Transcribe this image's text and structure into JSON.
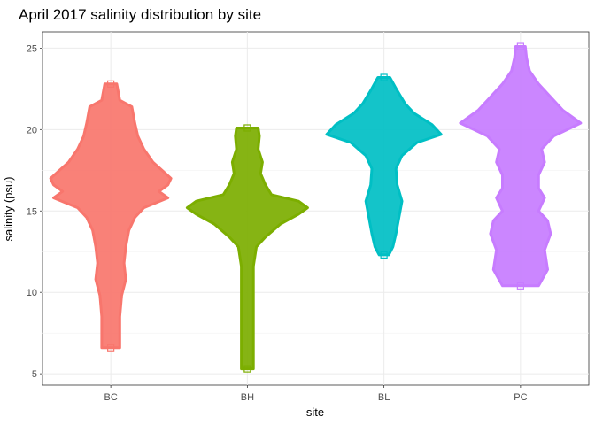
{
  "chart_data": {
    "type": "violin",
    "title": "April 2017 salinity distribution by site",
    "xlabel": "site",
    "ylabel": "salinity (psu)",
    "ylim": [
      4.3,
      26.0
    ],
    "yticks": [
      5,
      10,
      15,
      20,
      25
    ],
    "grid": true,
    "legend": "none",
    "categories": [
      "BC",
      "BH",
      "BL",
      "PC"
    ],
    "series": [
      {
        "category": "BC",
        "color": "#F8766D",
        "min": 6.6,
        "max": 22.8,
        "profile": [
          [
            6.6,
            0.15
          ],
          [
            8.5,
            0.15
          ],
          [
            9.8,
            0.18
          ],
          [
            10.8,
            0.25
          ],
          [
            11.8,
            0.22
          ],
          [
            12.8,
            0.25
          ],
          [
            13.8,
            0.3
          ],
          [
            14.6,
            0.4
          ],
          [
            15.2,
            0.55
          ],
          [
            15.8,
            0.95
          ],
          [
            16.2,
            0.8
          ],
          [
            16.6,
            0.95
          ],
          [
            17.0,
            1.0
          ],
          [
            17.5,
            0.85
          ],
          [
            18.0,
            0.7
          ],
          [
            18.8,
            0.55
          ],
          [
            19.6,
            0.45
          ],
          [
            20.4,
            0.4
          ],
          [
            21.4,
            0.35
          ],
          [
            21.8,
            0.15
          ],
          [
            22.8,
            0.1
          ]
        ]
      },
      {
        "category": "BH",
        "color": "#7CAE00",
        "min": 5.3,
        "max": 20.1,
        "profile": [
          [
            5.3,
            0.1
          ],
          [
            5.6,
            0.1
          ],
          [
            8.1,
            0.1
          ],
          [
            8.4,
            0.1
          ],
          [
            11.6,
            0.1
          ],
          [
            12.8,
            0.15
          ],
          [
            13.4,
            0.3
          ],
          [
            14.2,
            0.55
          ],
          [
            14.8,
            0.85
          ],
          [
            15.2,
            1.0
          ],
          [
            15.6,
            0.85
          ],
          [
            16.0,
            0.4
          ],
          [
            16.6,
            0.3
          ],
          [
            17.3,
            0.22
          ],
          [
            18.0,
            0.25
          ],
          [
            18.8,
            0.18
          ],
          [
            19.6,
            0.2
          ],
          [
            20.1,
            0.18
          ]
        ]
      },
      {
        "category": "BL",
        "color": "#00BFC4",
        "min": 12.3,
        "max": 23.2,
        "profile": [
          [
            12.3,
            0.08
          ],
          [
            12.8,
            0.15
          ],
          [
            13.6,
            0.2
          ],
          [
            14.6,
            0.25
          ],
          [
            15.6,
            0.3
          ],
          [
            16.6,
            0.22
          ],
          [
            17.6,
            0.2
          ],
          [
            18.4,
            0.3
          ],
          [
            19.2,
            0.55
          ],
          [
            19.7,
            0.95
          ],
          [
            20.3,
            0.8
          ],
          [
            21.0,
            0.5
          ],
          [
            21.6,
            0.35
          ],
          [
            22.4,
            0.22
          ],
          [
            23.2,
            0.1
          ]
        ]
      },
      {
        "category": "PC",
        "color": "#C77CFF",
        "min": 10.4,
        "max": 25.1,
        "profile": [
          [
            10.4,
            0.3
          ],
          [
            11.4,
            0.45
          ],
          [
            12.6,
            0.4
          ],
          [
            13.6,
            0.5
          ],
          [
            14.4,
            0.45
          ],
          [
            15.0,
            0.3
          ],
          [
            15.8,
            0.4
          ],
          [
            16.4,
            0.3
          ],
          [
            17.2,
            0.3
          ],
          [
            18.0,
            0.4
          ],
          [
            18.8,
            0.35
          ],
          [
            19.6,
            0.55
          ],
          [
            20.4,
            1.0
          ],
          [
            21.2,
            0.7
          ],
          [
            22.0,
            0.5
          ],
          [
            22.8,
            0.3
          ],
          [
            23.6,
            0.15
          ],
          [
            24.4,
            0.1
          ],
          [
            25.1,
            0.08
          ]
        ]
      }
    ]
  }
}
